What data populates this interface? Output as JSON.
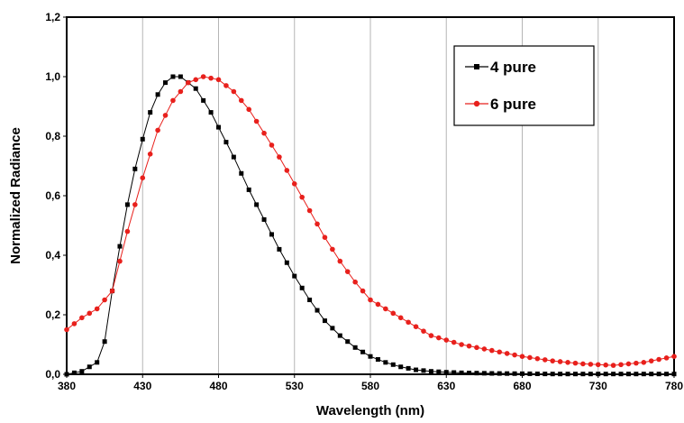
{
  "chart_data": {
    "type": "line",
    "title": "",
    "xlabel": "Wavelength (nm)",
    "ylabel": "Normalized Radiance",
    "xlim": [
      380,
      780
    ],
    "ylim": [
      0,
      1.2
    ],
    "x_ticks": [
      "380",
      "430",
      "480",
      "530",
      "580",
      "630",
      "680",
      "730",
      "780"
    ],
    "y_ticks": [
      "0,0",
      "0,2",
      "0,4",
      "0,6",
      "0,8",
      "1,0",
      "1,2"
    ],
    "grid": "vertical gridlines at x ticks",
    "legend_position": "top-right",
    "series": [
      {
        "name": "4 pure",
        "color": "#000000",
        "marker": "square",
        "x": [
          380,
          390,
          400,
          405,
          410,
          415,
          420,
          425,
          430,
          435,
          440,
          445,
          450,
          455,
          460,
          465,
          470,
          475,
          480,
          490,
          500,
          510,
          520,
          530,
          540,
          550,
          560,
          570,
          580,
          590,
          600,
          610,
          620,
          630,
          640,
          660,
          680,
          700,
          730,
          760,
          780
        ],
        "y": [
          0.0,
          0.01,
          0.04,
          0.11,
          0.28,
          0.43,
          0.57,
          0.69,
          0.79,
          0.88,
          0.94,
          0.98,
          1.0,
          1.0,
          0.98,
          0.96,
          0.92,
          0.88,
          0.83,
          0.73,
          0.62,
          0.52,
          0.42,
          0.33,
          0.25,
          0.18,
          0.13,
          0.09,
          0.06,
          0.04,
          0.025,
          0.015,
          0.01,
          0.007,
          0.005,
          0.003,
          0.002,
          0.001,
          0.001,
          0.001,
          0.001
        ]
      },
      {
        "name": "6 pure",
        "color": "#e8201c",
        "marker": "circle",
        "x": [
          380,
          390,
          400,
          410,
          420,
          430,
          440,
          450,
          460,
          470,
          480,
          490,
          500,
          510,
          520,
          530,
          540,
          550,
          560,
          570,
          580,
          590,
          600,
          610,
          620,
          630,
          640,
          650,
          660,
          680,
          700,
          720,
          740,
          760,
          780
        ],
        "y": [
          0.15,
          0.19,
          0.22,
          0.28,
          0.48,
          0.66,
          0.82,
          0.92,
          0.98,
          1.0,
          0.99,
          0.95,
          0.89,
          0.81,
          0.73,
          0.64,
          0.55,
          0.46,
          0.38,
          0.31,
          0.25,
          0.22,
          0.19,
          0.16,
          0.13,
          0.115,
          0.1,
          0.09,
          0.08,
          0.06,
          0.045,
          0.035,
          0.03,
          0.04,
          0.06
        ]
      }
    ]
  }
}
